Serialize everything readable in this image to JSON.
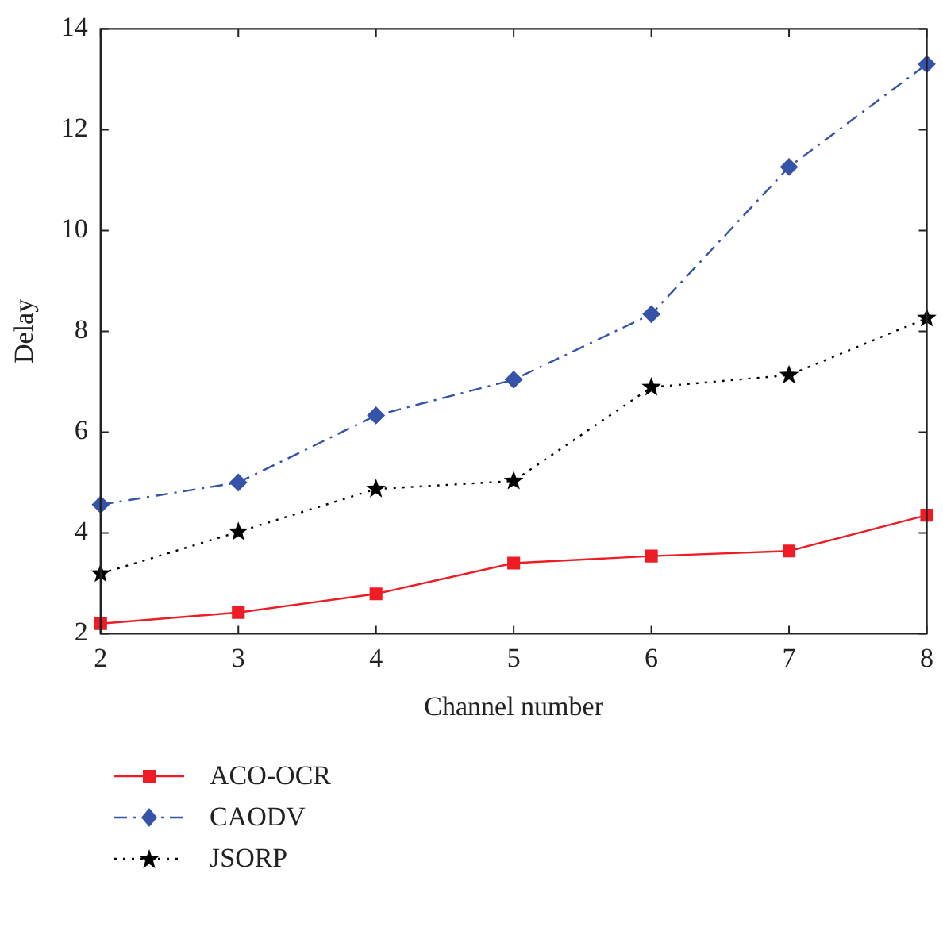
{
  "chart_data": {
    "type": "line",
    "xlabel": "Channel number",
    "ylabel": "Delay",
    "x": [
      2,
      3,
      4,
      5,
      6,
      7,
      8
    ],
    "xlim": [
      2,
      8
    ],
    "xticks": [
      2,
      3,
      4,
      5,
      6,
      7,
      8
    ],
    "ylim": [
      2,
      14
    ],
    "yticks": [
      2,
      4,
      6,
      8,
      10,
      12,
      14
    ],
    "grid": false,
    "legend": "bottom left",
    "series": [
      {
        "name": "ACO-OCR",
        "color": "#ee1c25",
        "marker": "square",
        "line_style": "solid",
        "values": [
          2.2,
          2.42,
          2.79,
          3.4,
          3.54,
          3.64,
          4.35
        ]
      },
      {
        "name": "CAODV",
        "color": "#3553a8",
        "marker": "diamond",
        "line_style": "dashdot",
        "values": [
          4.56,
          5.0,
          6.33,
          7.04,
          8.34,
          11.26,
          13.3
        ]
      },
      {
        "name": "JSORP",
        "color": "#000000",
        "marker": "star",
        "line_style": "dotted",
        "values": [
          3.19,
          4.02,
          4.87,
          5.03,
          6.89,
          7.13,
          8.26
        ]
      }
    ]
  }
}
